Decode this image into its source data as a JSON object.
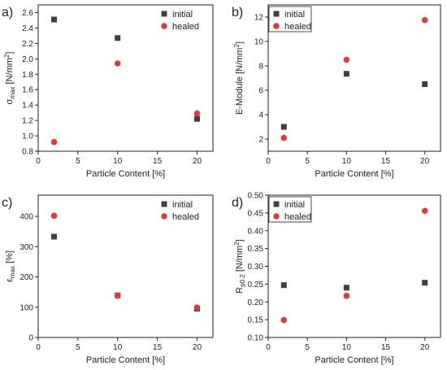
{
  "chart_data": [
    {
      "type": "scatter",
      "panel_label": "a)",
      "xlabel": "Particle Content [%]",
      "ylabel": "σ",
      "ylabel_sub": "max",
      "ylabel_unit": " [N/mm",
      "ylabel_sup": "2",
      "ylabel_end": "]",
      "xlim": [
        0,
        22
      ],
      "ylim": [
        0.8,
        2.7
      ],
      "xticks": [
        0,
        5,
        10,
        15,
        20
      ],
      "yticks": [
        0.8,
        1.0,
        1.2,
        1.4,
        1.6,
        1.8,
        2.0,
        2.2,
        2.4,
        2.6
      ],
      "ytick_decimals": 1,
      "legend_position": "top-right",
      "series": [
        {
          "name": "initial",
          "marker": "square",
          "color": "#404040",
          "x": [
            2,
            10,
            20
          ],
          "y": [
            2.51,
            2.27,
            1.22
          ]
        },
        {
          "name": "healed",
          "marker": "circle",
          "color": "#e03a3a",
          "x": [
            2,
            10,
            20
          ],
          "y": [
            0.92,
            1.94,
            1.29
          ]
        }
      ]
    },
    {
      "type": "scatter",
      "panel_label": "b)",
      "xlabel": "Particle Content [%]",
      "ylabel": "E-Module [N/mm",
      "ylabel_sub": "",
      "ylabel_unit": "",
      "ylabel_sup": "2",
      "ylabel_end": "]",
      "xlim": [
        0,
        22
      ],
      "ylim": [
        1,
        13
      ],
      "xticks": [
        0,
        5,
        10,
        15,
        20
      ],
      "yticks": [
        2,
        4,
        6,
        8,
        10,
        12
      ],
      "ytick_decimals": 0,
      "legend_position": "top-left",
      "series": [
        {
          "name": "initial",
          "marker": "square",
          "color": "#404040",
          "x": [
            2,
            10,
            20
          ],
          "y": [
            3.0,
            7.35,
            6.5
          ]
        },
        {
          "name": "healed",
          "marker": "circle",
          "color": "#e03a3a",
          "x": [
            2,
            10,
            20
          ],
          "y": [
            2.1,
            8.5,
            11.75
          ]
        }
      ]
    },
    {
      "type": "scatter",
      "panel_label": "c)",
      "xlabel": "Particle Content [%]",
      "ylabel": "ε",
      "ylabel_sub": "max",
      "ylabel_unit": " [%]",
      "ylabel_sup": "",
      "ylabel_end": "",
      "xlim": [
        0,
        22
      ],
      "ylim": [
        0,
        470
      ],
      "xticks": [
        0,
        5,
        10,
        15,
        20
      ],
      "yticks": [
        0,
        100,
        200,
        300,
        400
      ],
      "ytick_decimals": 0,
      "legend_position": "top-right",
      "series": [
        {
          "name": "initial",
          "marker": "square",
          "color": "#404040",
          "x": [
            2,
            10,
            20
          ],
          "y": [
            333,
            139,
            95
          ]
        },
        {
          "name": "healed",
          "marker": "circle",
          "color": "#e03a3a",
          "x": [
            2,
            10,
            20
          ],
          "y": [
            402,
            138,
            99
          ]
        }
      ]
    },
    {
      "type": "scatter",
      "panel_label": "d)",
      "xlabel": "Particle Content [%]",
      "ylabel": "R",
      "ylabel_sub": "p0.2",
      "ylabel_unit": " [N/mm",
      "ylabel_sup": "2",
      "ylabel_end": "]",
      "xlim": [
        0,
        22
      ],
      "ylim": [
        0.1,
        0.5
      ],
      "xticks": [
        0,
        5,
        10,
        15,
        20
      ],
      "yticks": [
        0.1,
        0.15,
        0.2,
        0.25,
        0.3,
        0.35,
        0.4,
        0.45,
        0.5
      ],
      "ytick_decimals": 2,
      "legend_position": "top-left",
      "series": [
        {
          "name": "initial",
          "marker": "square",
          "color": "#404040",
          "x": [
            2,
            10,
            20
          ],
          "y": [
            0.247,
            0.24,
            0.254
          ]
        },
        {
          "name": "healed",
          "marker": "circle",
          "color": "#e03a3a",
          "x": [
            2,
            10,
            20
          ],
          "y": [
            0.149,
            0.217,
            0.456
          ]
        }
      ]
    }
  ]
}
